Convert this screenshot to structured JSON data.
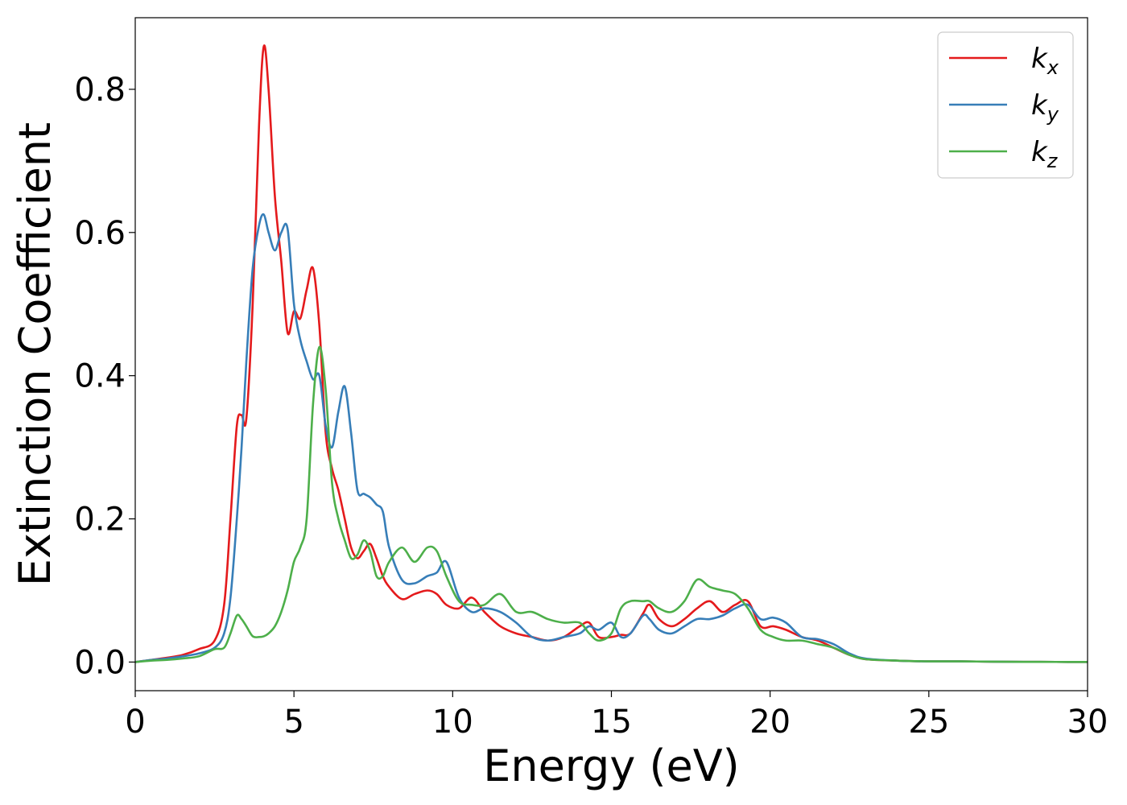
{
  "chart_data": {
    "type": "line",
    "xlabel": "Energy (eV)",
    "ylabel": "Extinction Coefficient",
    "xlim": [
      0,
      30
    ],
    "ylim": [
      -0.04,
      0.9
    ],
    "xticks": [
      "0",
      "5",
      "10",
      "15",
      "20",
      "25",
      "30"
    ],
    "yticks": [
      "0.0",
      "0.2",
      "0.4",
      "0.6",
      "0.8"
    ],
    "grid": false,
    "legend_position": "top-right",
    "x": [
      0,
      0.5,
      1,
      1.5,
      2,
      2.5,
      2.8,
      3,
      3.2,
      3.35,
      3.5,
      3.7,
      3.9,
      4.05,
      4.2,
      4.4,
      4.6,
      4.8,
      5,
      5.2,
      5.4,
      5.6,
      5.8,
      6,
      6.2,
      6.4,
      6.6,
      6.8,
      7,
      7.2,
      7.4,
      7.6,
      7.8,
      8,
      8.4,
      8.8,
      9.2,
      9.5,
      9.8,
      10.2,
      10.6,
      11,
      11.5,
      12,
      12.5,
      13,
      13.5,
      14,
      14.3,
      14.6,
      15,
      15.3,
      15.6,
      16,
      16.2,
      16.5,
      16.9,
      17.3,
      17.7,
      18.1,
      18.5,
      18.9,
      19.3,
      19.7,
      20.1,
      20.5,
      21,
      21.5,
      22,
      22.5,
      23,
      24,
      25,
      26,
      27,
      28,
      29,
      30
    ],
    "series": [
      {
        "name": "k_x",
        "label_base": "k",
        "label_sub": "x",
        "color": "#e41a1c",
        "values": [
          0.0,
          0.003,
          0.006,
          0.01,
          0.018,
          0.03,
          0.08,
          0.2,
          0.33,
          0.345,
          0.34,
          0.5,
          0.75,
          0.86,
          0.8,
          0.65,
          0.56,
          0.46,
          0.49,
          0.48,
          0.52,
          0.55,
          0.47,
          0.32,
          0.27,
          0.24,
          0.2,
          0.16,
          0.145,
          0.155,
          0.165,
          0.145,
          0.12,
          0.105,
          0.088,
          0.095,
          0.1,
          0.095,
          0.08,
          0.075,
          0.09,
          0.07,
          0.05,
          0.04,
          0.035,
          0.03,
          0.035,
          0.05,
          0.055,
          0.035,
          0.035,
          0.038,
          0.04,
          0.068,
          0.08,
          0.06,
          0.05,
          0.06,
          0.075,
          0.085,
          0.07,
          0.08,
          0.085,
          0.05,
          0.05,
          0.045,
          0.035,
          0.03,
          0.02,
          0.01,
          0.004,
          0.002,
          0.001,
          0.001,
          0.0005,
          0.0003,
          0.0002,
          0.0001
        ]
      },
      {
        "name": "k_y",
        "label_base": "k",
        "label_sub": "y",
        "color": "#377eb8",
        "values": [
          0.0,
          0.003,
          0.005,
          0.008,
          0.012,
          0.02,
          0.04,
          0.09,
          0.2,
          0.3,
          0.42,
          0.55,
          0.61,
          0.625,
          0.6,
          0.575,
          0.6,
          0.605,
          0.5,
          0.45,
          0.42,
          0.395,
          0.4,
          0.33,
          0.3,
          0.35,
          0.385,
          0.32,
          0.24,
          0.235,
          0.23,
          0.22,
          0.21,
          0.16,
          0.115,
          0.11,
          0.12,
          0.125,
          0.14,
          0.09,
          0.07,
          0.075,
          0.07,
          0.055,
          0.035,
          0.03,
          0.035,
          0.04,
          0.05,
          0.045,
          0.055,
          0.035,
          0.04,
          0.065,
          0.06,
          0.045,
          0.04,
          0.05,
          0.06,
          0.06,
          0.065,
          0.075,
          0.08,
          0.06,
          0.062,
          0.055,
          0.035,
          0.032,
          0.025,
          0.012,
          0.005,
          0.002,
          0.001,
          0.001,
          0.0005,
          0.0003,
          0.0002,
          0.0001
        ]
      },
      {
        "name": "k_z",
        "label_base": "k",
        "label_sub": "z",
        "color": "#4daf4a",
        "values": [
          0.0,
          0.002,
          0.003,
          0.005,
          0.008,
          0.018,
          0.02,
          0.04,
          0.065,
          0.06,
          0.05,
          0.036,
          0.035,
          0.036,
          0.04,
          0.05,
          0.07,
          0.1,
          0.14,
          0.16,
          0.2,
          0.36,
          0.44,
          0.38,
          0.25,
          0.2,
          0.17,
          0.145,
          0.15,
          0.17,
          0.155,
          0.12,
          0.12,
          0.14,
          0.16,
          0.14,
          0.16,
          0.155,
          0.12,
          0.085,
          0.08,
          0.08,
          0.095,
          0.07,
          0.07,
          0.06,
          0.055,
          0.055,
          0.04,
          0.03,
          0.04,
          0.075,
          0.085,
          0.085,
          0.085,
          0.075,
          0.07,
          0.085,
          0.115,
          0.105,
          0.1,
          0.095,
          0.075,
          0.045,
          0.035,
          0.03,
          0.03,
          0.025,
          0.02,
          0.01,
          0.004,
          0.002,
          0.001,
          0.001,
          0.0005,
          0.0003,
          0.0002,
          0.0001
        ]
      }
    ]
  }
}
